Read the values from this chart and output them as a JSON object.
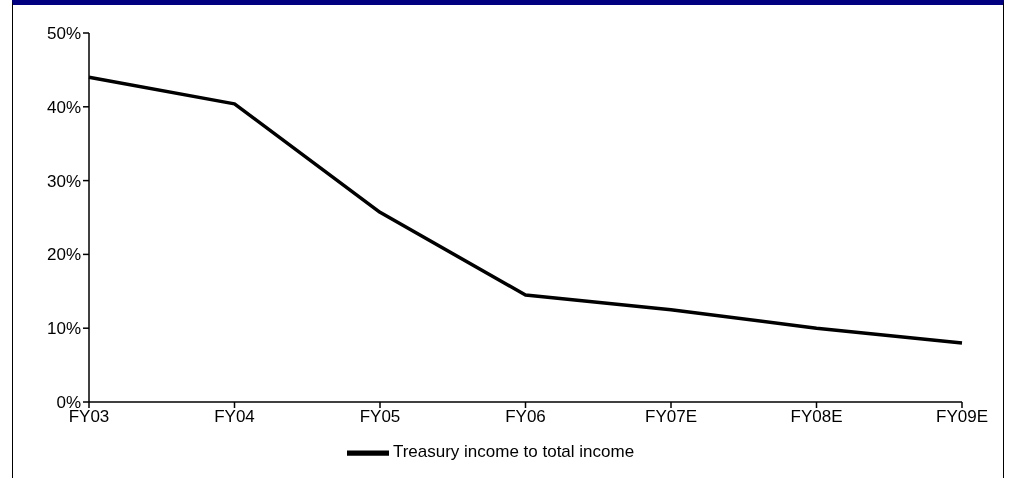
{
  "chart_data": {
    "type": "line",
    "categories": [
      "FY03",
      "FY04",
      "FY05",
      "FY06",
      "FY07E",
      "FY08E",
      "FY09E"
    ],
    "series": [
      {
        "name": "Treasury income to total income",
        "color": "#000000",
        "values": [
          44,
          40.4,
          25.7,
          14.5,
          12.5,
          10,
          8
        ]
      }
    ],
    "ylim": [
      0,
      50
    ],
    "yticks": [
      {
        "value": 0,
        "label": "0%"
      },
      {
        "value": 10,
        "label": "10%"
      },
      {
        "value": 20,
        "label": "20%"
      },
      {
        "value": 30,
        "label": "30%"
      },
      {
        "value": 40,
        "label": "40%"
      },
      {
        "value": 50,
        "label": "50%"
      }
    ],
    "legend": "bottom"
  }
}
